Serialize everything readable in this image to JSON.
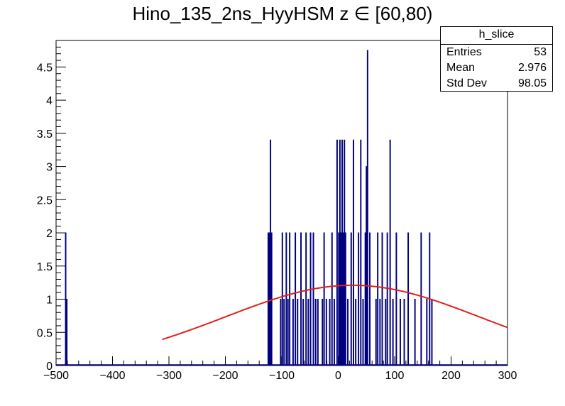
{
  "chart_data": {
    "type": "histogram",
    "title": "Hino_135_2ns_HyyHSM z  ∈ [60,80)",
    "xlim": [
      -500,
      300
    ],
    "ylim": [
      0,
      4.9
    ],
    "x_ticks": [
      -500,
      -400,
      -300,
      -200,
      -100,
      0,
      100,
      200,
      300
    ],
    "x_tick_labels": [
      "−500",
      "−400",
      "−300",
      "−200",
      "−100",
      "0",
      "100",
      "200",
      "300"
    ],
    "y_ticks": [
      0,
      0.5,
      1,
      1.5,
      2,
      2.5,
      3,
      3.5,
      4,
      4.5
    ],
    "y_tick_labels": [
      "0",
      "0.5",
      "1",
      "1.5",
      "2",
      "2.5",
      "3",
      "3.5",
      "4",
      "4.5"
    ],
    "histogram_color": "#00007f",
    "fit_color": "#e0201b",
    "bins": [
      {
        "x": -483,
        "y": 2
      },
      {
        "x": -481,
        "y": 1
      },
      {
        "x": -124,
        "y": 2
      },
      {
        "x": -122,
        "y": 2
      },
      {
        "x": -120,
        "y": 3.4
      },
      {
        "x": -118,
        "y": 2
      },
      {
        "x": -102,
        "y": 1
      },
      {
        "x": -99,
        "y": 2
      },
      {
        "x": -96,
        "y": 1
      },
      {
        "x": -92,
        "y": 2
      },
      {
        "x": -89,
        "y": 1
      },
      {
        "x": -86,
        "y": 2
      },
      {
        "x": -80,
        "y": 1
      },
      {
        "x": -76,
        "y": 2
      },
      {
        "x": -72,
        "y": 1
      },
      {
        "x": -66,
        "y": 2
      },
      {
        "x": -62,
        "y": 1
      },
      {
        "x": -57,
        "y": 2
      },
      {
        "x": -53,
        "y": 1
      },
      {
        "x": -49,
        "y": 2
      },
      {
        "x": -44,
        "y": 2
      },
      {
        "x": -40,
        "y": 1
      },
      {
        "x": -36,
        "y": 1
      },
      {
        "x": -28,
        "y": 1
      },
      {
        "x": -25,
        "y": 2
      },
      {
        "x": -21,
        "y": 1
      },
      {
        "x": -15,
        "y": 1
      },
      {
        "x": -11,
        "y": 2
      },
      {
        "x": -7,
        "y": 1
      },
      {
        "x": -2,
        "y": 3.4
      },
      {
        "x": 1,
        "y": 2
      },
      {
        "x": 3,
        "y": 3.4
      },
      {
        "x": 5,
        "y": 2
      },
      {
        "x": 7,
        "y": 3.4
      },
      {
        "x": 9,
        "y": 2
      },
      {
        "x": 11,
        "y": 3.4
      },
      {
        "x": 13,
        "y": 2
      },
      {
        "x": 17,
        "y": 1
      },
      {
        "x": 23,
        "y": 2
      },
      {
        "x": 27,
        "y": 3.4
      },
      {
        "x": 31,
        "y": 1
      },
      {
        "x": 36,
        "y": 2
      },
      {
        "x": 40,
        "y": 3.4
      },
      {
        "x": 44,
        "y": 1
      },
      {
        "x": 48,
        "y": 2
      },
      {
        "x": 50,
        "y": 3
      },
      {
        "x": 52,
        "y": 4.75
      },
      {
        "x": 56,
        "y": 2
      },
      {
        "x": 67,
        "y": 1
      },
      {
        "x": 70,
        "y": 2
      },
      {
        "x": 74,
        "y": 1
      },
      {
        "x": 78,
        "y": 2
      },
      {
        "x": 84,
        "y": 1
      },
      {
        "x": 87,
        "y": 2
      },
      {
        "x": 92,
        "y": 3.4
      },
      {
        "x": 97,
        "y": 1
      },
      {
        "x": 103,
        "y": 2
      },
      {
        "x": 110,
        "y": 1
      },
      {
        "x": 117,
        "y": 1
      },
      {
        "x": 124,
        "y": 2
      },
      {
        "x": 136,
        "y": 1
      },
      {
        "x": 147,
        "y": 2
      },
      {
        "x": 157,
        "y": 1
      },
      {
        "x": 162,
        "y": 2
      },
      {
        "x": 166,
        "y": 1
      }
    ],
    "fit": {
      "type": "gaussian",
      "amplitude": 1.21,
      "mean": 25,
      "sigma": 225,
      "x_range": [
        -312,
        300
      ]
    }
  },
  "stats_box": {
    "name": "h_slice",
    "rows": [
      {
        "label": "Entries",
        "value": "53"
      },
      {
        "label": "Mean",
        "value": "2.976"
      },
      {
        "label": "Std Dev",
        "value": "98.05"
      }
    ]
  }
}
